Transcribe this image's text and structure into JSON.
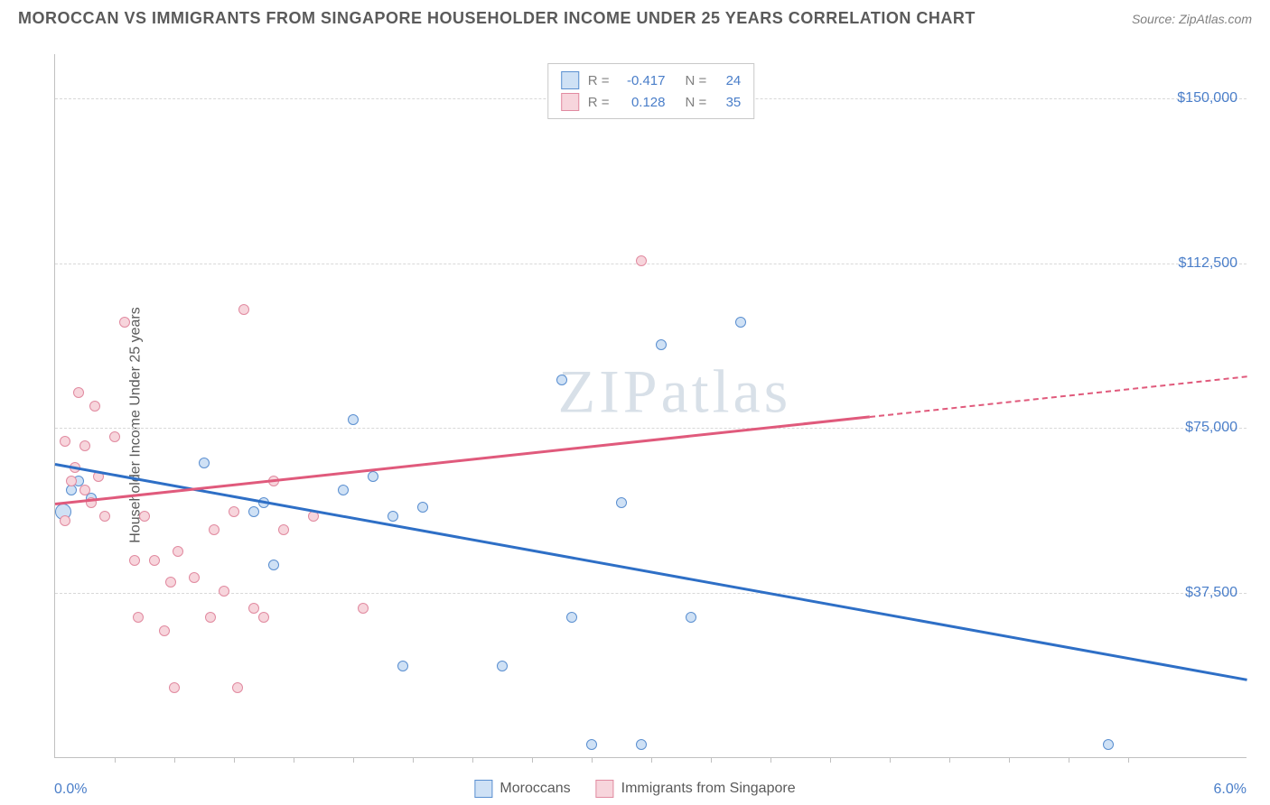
{
  "title": "MOROCCAN VS IMMIGRANTS FROM SINGAPORE HOUSEHOLDER INCOME UNDER 25 YEARS CORRELATION CHART",
  "source": "Source: ZipAtlas.com",
  "ylabel": "Householder Income Under 25 years",
  "watermark": "ZIPatlas",
  "chart": {
    "type": "scatter",
    "background_color": "#ffffff",
    "grid_color": "#d8d8d8",
    "axis_color": "#c0c0c0",
    "tick_label_color": "#4a7ec9",
    "xlim": [
      0.0,
      6.0
    ],
    "ylim": [
      0,
      160000
    ],
    "x_left_label": "0.0%",
    "x_right_label": "6.0%",
    "xtick_positions": [
      0.3,
      0.6,
      0.9,
      1.2,
      1.5,
      1.8,
      2.1,
      2.4,
      2.7,
      3.0,
      3.3,
      3.6,
      3.9,
      4.2,
      4.5,
      4.8,
      5.1,
      5.4
    ],
    "yticks": [
      {
        "value": 37500,
        "label": "$37,500"
      },
      {
        "value": 75000,
        "label": "$75,000"
      },
      {
        "value": 112500,
        "label": "$112,500"
      },
      {
        "value": 150000,
        "label": "$150,000"
      }
    ],
    "series": [
      {
        "name": "Moroccans",
        "fill": "#cfe1f5",
        "stroke": "#5a8fd0",
        "trend_color": "#2e6fc6",
        "r_value": "-0.417",
        "n_value": "24",
        "trend": {
          "x1": 0.0,
          "y1": 67000,
          "x2": 6.0,
          "y2": 18000,
          "dash_from_x": null
        },
        "points": [
          {
            "x": 0.04,
            "y": 56000,
            "size": 18
          },
          {
            "x": 0.08,
            "y": 61000,
            "size": 12
          },
          {
            "x": 0.12,
            "y": 63000,
            "size": 12
          },
          {
            "x": 0.18,
            "y": 59000,
            "size": 12
          },
          {
            "x": 0.75,
            "y": 67000,
            "size": 12
          },
          {
            "x": 1.0,
            "y": 56000,
            "size": 12
          },
          {
            "x": 1.05,
            "y": 58000,
            "size": 12
          },
          {
            "x": 1.1,
            "y": 44000,
            "size": 12
          },
          {
            "x": 1.45,
            "y": 61000,
            "size": 12
          },
          {
            "x": 1.5,
            "y": 77000,
            "size": 12
          },
          {
            "x": 1.6,
            "y": 64000,
            "size": 12
          },
          {
            "x": 1.7,
            "y": 55000,
            "size": 12
          },
          {
            "x": 1.75,
            "y": 21000,
            "size": 12
          },
          {
            "x": 1.85,
            "y": 57000,
            "size": 12
          },
          {
            "x": 2.25,
            "y": 21000,
            "size": 12
          },
          {
            "x": 2.55,
            "y": 86000,
            "size": 12
          },
          {
            "x": 2.6,
            "y": 32000,
            "size": 12
          },
          {
            "x": 2.7,
            "y": 3000,
            "size": 12
          },
          {
            "x": 2.85,
            "y": 58000,
            "size": 12
          },
          {
            "x": 2.95,
            "y": 3000,
            "size": 12
          },
          {
            "x": 3.05,
            "y": 94000,
            "size": 12
          },
          {
            "x": 3.2,
            "y": 32000,
            "size": 12
          },
          {
            "x": 3.45,
            "y": 99000,
            "size": 12
          },
          {
            "x": 5.3,
            "y": 3000,
            "size": 12
          }
        ]
      },
      {
        "name": "Immigrants from Singapore",
        "fill": "#f7d5dc",
        "stroke": "#e18aa0",
        "trend_color": "#e05a7c",
        "r_value": "0.128",
        "n_value": "35",
        "trend": {
          "x1": 0.0,
          "y1": 58000,
          "x2": 6.0,
          "y2": 87000,
          "dash_from_x": 4.1
        },
        "points": [
          {
            "x": 0.05,
            "y": 72000,
            "size": 12
          },
          {
            "x": 0.05,
            "y": 54000,
            "size": 12
          },
          {
            "x": 0.08,
            "y": 63000,
            "size": 12
          },
          {
            "x": 0.1,
            "y": 66000,
            "size": 12
          },
          {
            "x": 0.12,
            "y": 83000,
            "size": 12
          },
          {
            "x": 0.15,
            "y": 61000,
            "size": 12
          },
          {
            "x": 0.15,
            "y": 71000,
            "size": 12
          },
          {
            "x": 0.18,
            "y": 58000,
            "size": 12
          },
          {
            "x": 0.2,
            "y": 80000,
            "size": 12
          },
          {
            "x": 0.22,
            "y": 64000,
            "size": 12
          },
          {
            "x": 0.25,
            "y": 55000,
            "size": 12
          },
          {
            "x": 0.3,
            "y": 73000,
            "size": 12
          },
          {
            "x": 0.35,
            "y": 99000,
            "size": 12
          },
          {
            "x": 0.4,
            "y": 45000,
            "size": 12
          },
          {
            "x": 0.42,
            "y": 32000,
            "size": 12
          },
          {
            "x": 0.45,
            "y": 55000,
            "size": 12
          },
          {
            "x": 0.5,
            "y": 45000,
            "size": 12
          },
          {
            "x": 0.55,
            "y": 29000,
            "size": 12
          },
          {
            "x": 0.58,
            "y": 40000,
            "size": 12
          },
          {
            "x": 0.6,
            "y": 16000,
            "size": 12
          },
          {
            "x": 0.62,
            "y": 47000,
            "size": 12
          },
          {
            "x": 0.7,
            "y": 41000,
            "size": 12
          },
          {
            "x": 0.78,
            "y": 32000,
            "size": 12
          },
          {
            "x": 0.8,
            "y": 52000,
            "size": 12
          },
          {
            "x": 0.85,
            "y": 38000,
            "size": 12
          },
          {
            "x": 0.9,
            "y": 56000,
            "size": 12
          },
          {
            "x": 0.92,
            "y": 16000,
            "size": 12
          },
          {
            "x": 0.95,
            "y": 102000,
            "size": 12
          },
          {
            "x": 1.0,
            "y": 34000,
            "size": 12
          },
          {
            "x": 1.05,
            "y": 32000,
            "size": 12
          },
          {
            "x": 1.1,
            "y": 63000,
            "size": 12
          },
          {
            "x": 1.15,
            "y": 52000,
            "size": 12
          },
          {
            "x": 1.3,
            "y": 55000,
            "size": 12
          },
          {
            "x": 1.55,
            "y": 34000,
            "size": 12
          },
          {
            "x": 2.95,
            "y": 113000,
            "size": 12
          }
        ]
      }
    ],
    "legend_bottom": [
      {
        "swatch_fill": "#cfe1f5",
        "swatch_stroke": "#5a8fd0",
        "label": "Moroccans"
      },
      {
        "swatch_fill": "#f7d5dc",
        "swatch_stroke": "#e18aa0",
        "label": "Immigrants from Singapore"
      }
    ]
  }
}
